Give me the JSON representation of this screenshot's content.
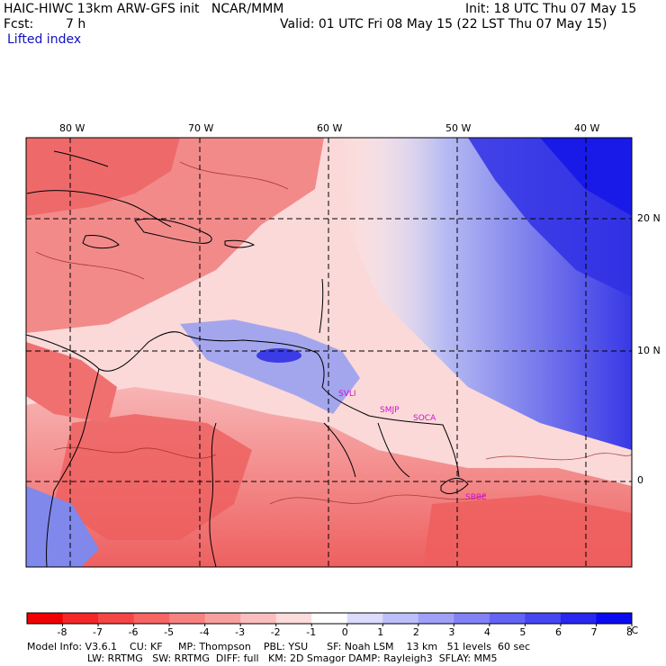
{
  "header": {
    "model_line": "HAIC-HIWC 13km ARW-GFS init   NCAR/MMM",
    "init_line": "Init: 18 UTC Thu 07 May 15",
    "fcst_label": "Fcst:",
    "fcst_value": "7 h",
    "valid_line": "Valid: 01 UTC Fri 08 May 15 (22 LST Thu 07 May 15)",
    "field_name": "Lifted index"
  },
  "map": {
    "longitude_labels": [
      "80 W",
      "70 W",
      "60 W",
      "50 W",
      "40 W"
    ],
    "latitude_labels": [
      "20 N",
      "10 N",
      "0"
    ],
    "stations": [
      "SVLI",
      "SMJP",
      "SOCA",
      "SBBE"
    ],
    "colors": {
      "negative_strong": "#e8282a",
      "negative_light": "#f6b8b8",
      "neutral": "#ffffff",
      "positive_light": "#c6c8f4",
      "positive_strong": "#2424e0",
      "station_label": "#d010d0"
    }
  },
  "colorbar": {
    "tick_labels": [
      "-8",
      "-7",
      "-6",
      "-5",
      "-4",
      "-3",
      "-2",
      "-1",
      "0",
      "1",
      "2",
      "3",
      "4",
      "5",
      "6",
      "7",
      "8"
    ],
    "unit": "°C",
    "colors": [
      "#f00000",
      "#f42828",
      "#f54646",
      "#f66464",
      "#f78282",
      "#f8a0a0",
      "#fabebe",
      "#fcdcdc",
      "#ffffff",
      "#dcdcfc",
      "#bebefa",
      "#a0a0f8",
      "#8282f6",
      "#6464f4",
      "#4646f2",
      "#2828f0",
      "#0a0af0"
    ]
  },
  "footer": {
    "line1": "Model Info: V3.6.1    CU: KF     MP: Thompson    PBL: YSU      SF: Noah LSM    13 km   51 levels  60 sec",
    "line2": "LW: RRTMG   SW: RRTMG  DIFF: full   KM: 2D Smagor DAMP: Rayleigh3  SFLAY: MM5"
  }
}
